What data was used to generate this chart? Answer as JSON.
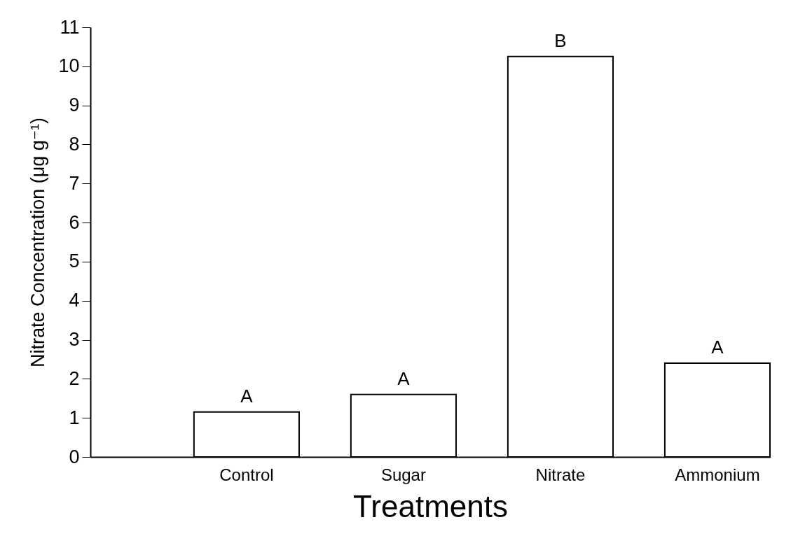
{
  "chart_data": {
    "type": "bar",
    "xlabel": "Treatments",
    "ylabel": "Nitrate Concentration (μg g⁻¹)",
    "categories": [
      "Control",
      "Sugar",
      "Nitrate",
      "Ammonium"
    ],
    "values": [
      1.15,
      1.6,
      10.25,
      2.4
    ],
    "color": "#ffffff",
    "ylim": [
      0,
      11
    ],
    "yticks": [
      0,
      1,
      2,
      3,
      4,
      5,
      6,
      7,
      8,
      9,
      10,
      11
    ],
    "grid": false,
    "annotations": [
      {
        "text": "A",
        "x": "Control",
        "y": 1.15
      },
      {
        "text": "A",
        "x": "Sugar",
        "y": 1.6
      },
      {
        "text": "B",
        "x": "Nitrate",
        "y": 10.25
      },
      {
        "text": "A",
        "x": "Ammonium",
        "y": 2.4
      }
    ]
  }
}
